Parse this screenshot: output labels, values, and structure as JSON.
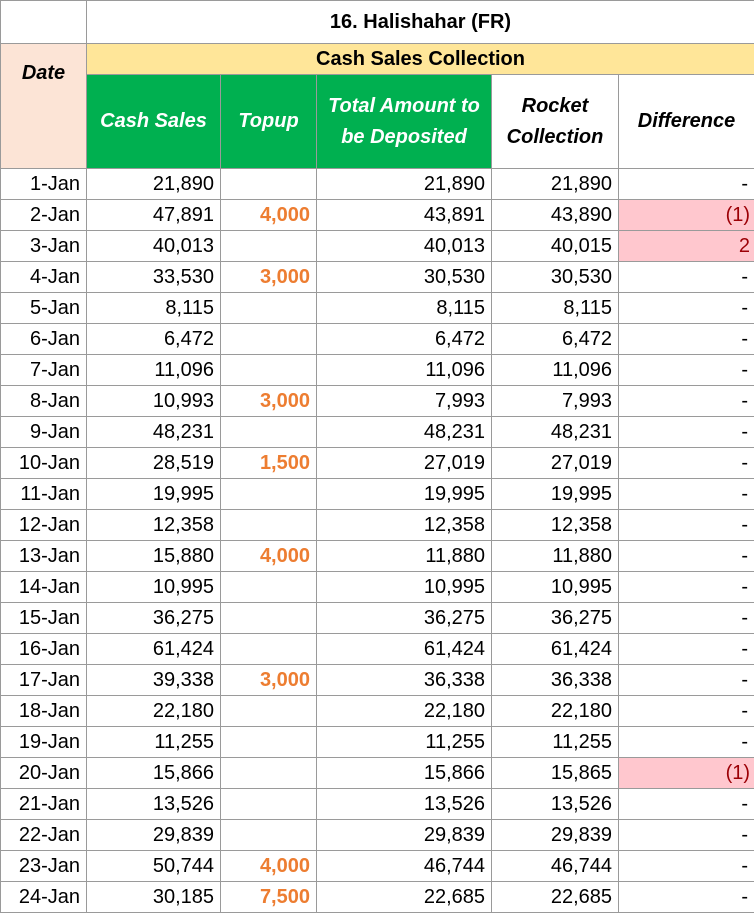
{
  "title": "16. Halishahar (FR)",
  "section": "Cash Sales Collection",
  "headers": {
    "date": "Date",
    "cash_sales": "Cash Sales",
    "topup": "Topup",
    "total_amount": "Total Amount to be Deposited",
    "rocket": "Rocket Collection",
    "difference": "Difference"
  },
  "colors": {
    "title_band": "#ffe699",
    "green_header": "#00b050",
    "date_header": "#fce4d6",
    "topup_text": "#ed7d31",
    "diff_highlight": "#ffc7ce"
  },
  "rows": [
    {
      "date": "1-Jan",
      "cash": "21,890",
      "topup": "",
      "total": "21,890",
      "rocket": "21,890",
      "diff": "-"
    },
    {
      "date": "2-Jan",
      "cash": "47,891",
      "topup": "4,000",
      "total": "43,891",
      "rocket": "43,890",
      "diff": "(1)"
    },
    {
      "date": "3-Jan",
      "cash": "40,013",
      "topup": "",
      "total": "40,013",
      "rocket": "40,015",
      "diff": "2"
    },
    {
      "date": "4-Jan",
      "cash": "33,530",
      "topup": "3,000",
      "total": "30,530",
      "rocket": "30,530",
      "diff": "-"
    },
    {
      "date": "5-Jan",
      "cash": "8,115",
      "topup": "",
      "total": "8,115",
      "rocket": "8,115",
      "diff": "-"
    },
    {
      "date": "6-Jan",
      "cash": "6,472",
      "topup": "",
      "total": "6,472",
      "rocket": "6,472",
      "diff": "-"
    },
    {
      "date": "7-Jan",
      "cash": "11,096",
      "topup": "",
      "total": "11,096",
      "rocket": "11,096",
      "diff": "-"
    },
    {
      "date": "8-Jan",
      "cash": "10,993",
      "topup": "3,000",
      "total": "7,993",
      "rocket": "7,993",
      "diff": "-"
    },
    {
      "date": "9-Jan",
      "cash": "48,231",
      "topup": "",
      "total": "48,231",
      "rocket": "48,231",
      "diff": "-"
    },
    {
      "date": "10-Jan",
      "cash": "28,519",
      "topup": "1,500",
      "total": "27,019",
      "rocket": "27,019",
      "diff": "-"
    },
    {
      "date": "11-Jan",
      "cash": "19,995",
      "topup": "",
      "total": "19,995",
      "rocket": "19,995",
      "diff": "-"
    },
    {
      "date": "12-Jan",
      "cash": "12,358",
      "topup": "",
      "total": "12,358",
      "rocket": "12,358",
      "diff": "-"
    },
    {
      "date": "13-Jan",
      "cash": "15,880",
      "topup": "4,000",
      "total": "11,880",
      "rocket": "11,880",
      "diff": "-"
    },
    {
      "date": "14-Jan",
      "cash": "10,995",
      "topup": "",
      "total": "10,995",
      "rocket": "10,995",
      "diff": "-"
    },
    {
      "date": "15-Jan",
      "cash": "36,275",
      "topup": "",
      "total": "36,275",
      "rocket": "36,275",
      "diff": "-"
    },
    {
      "date": "16-Jan",
      "cash": "61,424",
      "topup": "",
      "total": "61,424",
      "rocket": "61,424",
      "diff": "-"
    },
    {
      "date": "17-Jan",
      "cash": "39,338",
      "topup": "3,000",
      "total": "36,338",
      "rocket": "36,338",
      "diff": "-"
    },
    {
      "date": "18-Jan",
      "cash": "22,180",
      "topup": "",
      "total": "22,180",
      "rocket": "22,180",
      "diff": "-"
    },
    {
      "date": "19-Jan",
      "cash": "11,255",
      "topup": "",
      "total": "11,255",
      "rocket": "11,255",
      "diff": "-"
    },
    {
      "date": "20-Jan",
      "cash": "15,866",
      "topup": "",
      "total": "15,866",
      "rocket": "15,865",
      "diff": "(1)"
    },
    {
      "date": "21-Jan",
      "cash": "13,526",
      "topup": "",
      "total": "13,526",
      "rocket": "13,526",
      "diff": "-"
    },
    {
      "date": "22-Jan",
      "cash": "29,839",
      "topup": "",
      "total": "29,839",
      "rocket": "29,839",
      "diff": "-"
    },
    {
      "date": "23-Jan",
      "cash": "50,744",
      "topup": "4,000",
      "total": "46,744",
      "rocket": "46,744",
      "diff": "-"
    },
    {
      "date": "24-Jan",
      "cash": "30,185",
      "topup": "7,500",
      "total": "22,685",
      "rocket": "22,685",
      "diff": "-"
    }
  ]
}
